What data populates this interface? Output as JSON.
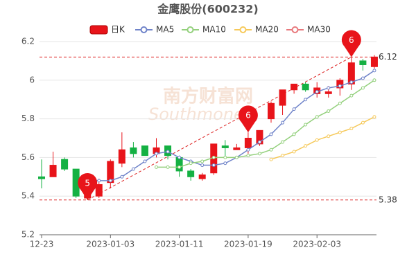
{
  "chart_data": {
    "type": "candlestick",
    "title": "金鹰股份(600232)",
    "watermark": [
      "南方财富网",
      "Southmoney"
    ],
    "categories": [
      "12-23",
      null,
      null,
      null,
      null,
      null,
      "2023-01-03",
      null,
      null,
      null,
      null,
      null,
      "2023-01-11",
      null,
      null,
      null,
      null,
      null,
      "2023-01-19",
      null,
      null,
      null,
      null,
      null,
      "2023-02-03",
      null,
      null,
      null,
      null,
      null
    ],
    "candle_name": "日K",
    "up_color": "#e8141a",
    "down_color": "#14b143",
    "open": [
      5.5,
      5.5,
      5.59,
      5.54,
      5.39,
      5.4,
      5.47,
      5.57,
      5.65,
      5.66,
      5.62,
      5.66,
      5.6,
      5.53,
      5.49,
      5.52,
      5.66,
      5.64,
      5.65,
      5.67,
      5.8,
      5.87,
      5.95,
      5.98,
      5.93,
      5.93,
      5.96,
      5.98,
      6.1,
      6.07
    ],
    "high": [
      5.59,
      5.63,
      5.6,
      5.54,
      5.44,
      5.49,
      5.59,
      5.73,
      5.68,
      5.66,
      5.7,
      5.66,
      5.61,
      5.54,
      5.52,
      5.67,
      5.69,
      5.67,
      5.73,
      5.74,
      5.89,
      5.95,
      5.98,
      5.99,
      5.99,
      5.97,
      6.01,
      6.12,
      6.11,
      6.13
    ],
    "low": [
      5.44,
      5.5,
      5.53,
      5.39,
      5.38,
      5.39,
      5.44,
      5.55,
      5.6,
      5.61,
      5.6,
      5.59,
      5.5,
      5.48,
      5.48,
      5.51,
      5.6,
      5.64,
      5.62,
      5.66,
      5.78,
      5.82,
      5.93,
      5.94,
      5.91,
      5.91,
      5.92,
      5.95,
      6.05,
      6.06
    ],
    "close": [
      5.49,
      5.56,
      5.54,
      5.4,
      5.42,
      5.46,
      5.58,
      5.64,
      5.62,
      5.61,
      5.65,
      5.61,
      5.53,
      5.5,
      5.51,
      5.67,
      5.65,
      5.65,
      5.7,
      5.74,
      5.88,
      5.95,
      5.98,
      5.95,
      5.96,
      5.94,
      6.0,
      6.09,
      6.08,
      6.12
    ],
    "series": [
      {
        "name": "MA5",
        "color": "#6f83c9",
        "values": [
          null,
          null,
          null,
          null,
          5.48,
          5.48,
          5.48,
          5.5,
          5.54,
          5.58,
          5.62,
          5.63,
          5.6,
          5.58,
          5.56,
          5.56,
          5.57,
          5.6,
          5.64,
          5.68,
          5.72,
          5.78,
          5.85,
          5.9,
          5.94,
          5.96,
          5.97,
          5.99,
          6.01,
          6.05
        ]
      },
      {
        "name": "MA10",
        "color": "#93d07c",
        "values": [
          null,
          null,
          null,
          null,
          null,
          null,
          null,
          null,
          null,
          null,
          5.55,
          5.55,
          5.55,
          5.57,
          5.58,
          5.6,
          5.6,
          5.6,
          5.61,
          5.62,
          5.64,
          5.68,
          5.72,
          5.77,
          5.81,
          5.84,
          5.88,
          5.92,
          5.96,
          6.0
        ]
      },
      {
        "name": "MA20",
        "color": "#f6c95a",
        "values": [
          null,
          null,
          null,
          null,
          null,
          null,
          null,
          null,
          null,
          null,
          null,
          null,
          null,
          null,
          null,
          null,
          null,
          null,
          null,
          null,
          5.59,
          5.61,
          5.63,
          5.66,
          5.69,
          5.71,
          5.73,
          5.75,
          5.78,
          5.81
        ]
      },
      {
        "name": "MA30",
        "color": "#e8787c",
        "values": [
          null,
          null,
          null,
          null,
          null,
          null,
          null,
          null,
          null,
          null,
          null,
          null,
          null,
          null,
          null,
          null,
          null,
          null,
          null,
          null,
          null,
          null,
          null,
          null,
          null,
          null,
          null,
          null,
          null,
          null
        ]
      }
    ],
    "levels": [
      6.12,
      5.38
    ],
    "markers": [
      {
        "label": "6",
        "index": 27,
        "value": 6.12
      },
      {
        "label": "6",
        "index": 18,
        "value": 5.73
      },
      {
        "label": "5",
        "index": 4,
        "value": 5.38
      }
    ],
    "ylim": [
      5.2,
      6.2
    ],
    "yticks": [
      5.2,
      5.4,
      5.6,
      5.8,
      6,
      6.2
    ],
    "grid": true
  }
}
